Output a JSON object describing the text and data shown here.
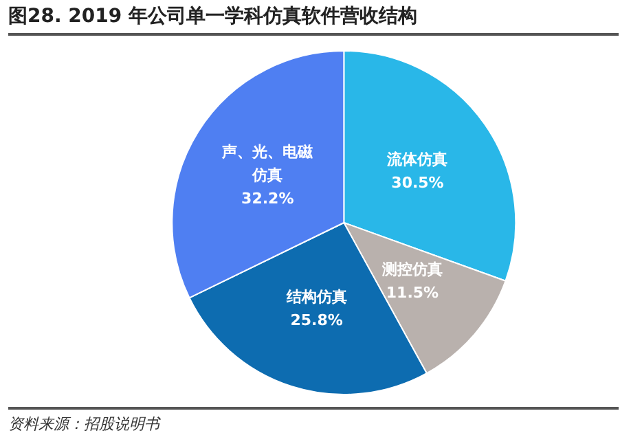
{
  "chart_data": {
    "type": "pie",
    "title": "图28. 2019 年公司单一学科仿真软件营收结构",
    "categories": [
      "流体仿真",
      "测控仿真",
      "结构仿真",
      "声、光、电磁仿真"
    ],
    "values": [
      30.5,
      11.5,
      25.8,
      32.2
    ],
    "value_labels": [
      "30.5%",
      "11.5%",
      "25.8%",
      "32.2%"
    ],
    "colors": [
      "#29b7e8",
      "#b9b1ad",
      "#0d6cb0",
      "#4f7ff2"
    ],
    "annotations": [
      "资料来源：招股说明书"
    ],
    "legend": false
  }
}
